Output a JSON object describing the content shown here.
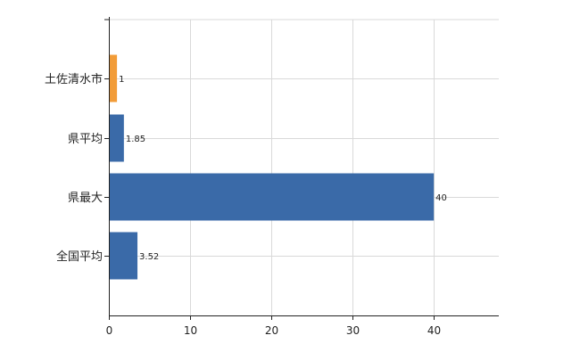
{
  "chart_data": {
    "type": "bar",
    "orientation": "horizontal",
    "categories": [
      "土佐清水市",
      "県平均",
      "県最大",
      "全国平均"
    ],
    "values": [
      1,
      1.85,
      40,
      3.52
    ],
    "data_labels": [
      "1",
      "1.85",
      "40",
      "3.52"
    ],
    "bar_colors": [
      "#f29c38",
      "#3a6aa8",
      "#3a6aa8",
      "#3a6aa8"
    ],
    "xlim": [
      0,
      48
    ],
    "xticks": [
      0,
      10,
      20,
      30,
      40
    ],
    "xtick_labels": [
      "0",
      "10",
      "20",
      "30",
      "40"
    ],
    "title": "",
    "xlabel": "",
    "ylabel": "",
    "grid": true,
    "legend": "none"
  }
}
